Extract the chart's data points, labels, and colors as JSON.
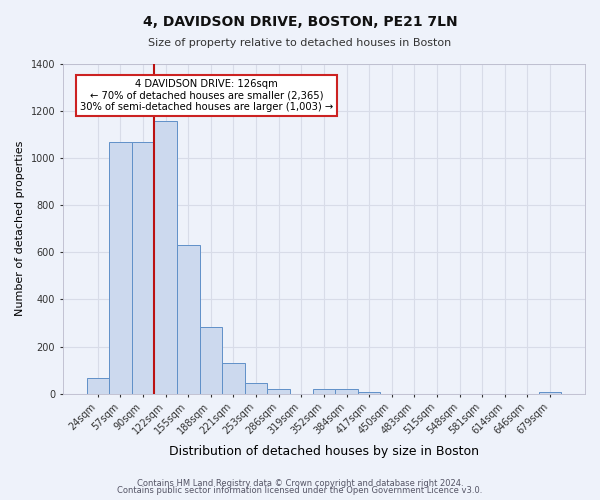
{
  "title": "4, DAVIDSON DRIVE, BOSTON, PE21 7LN",
  "subtitle": "Size of property relative to detached houses in Boston",
  "xlabel": "Distribution of detached houses by size in Boston",
  "ylabel": "Number of detached properties",
  "bar_labels": [
    "24sqm",
    "57sqm",
    "90sqm",
    "122sqm",
    "155sqm",
    "188sqm",
    "221sqm",
    "253sqm",
    "286sqm",
    "319sqm",
    "352sqm",
    "384sqm",
    "417sqm",
    "450sqm",
    "483sqm",
    "515sqm",
    "548sqm",
    "581sqm",
    "614sqm",
    "646sqm",
    "679sqm"
  ],
  "bar_values": [
    65,
    1070,
    1070,
    1160,
    630,
    285,
    130,
    47,
    20,
    0,
    20,
    20,
    5,
    0,
    0,
    0,
    0,
    0,
    0,
    0,
    5
  ],
  "bar_color": "#ccd9ee",
  "bar_edge_color": "#6090c8",
  "property_line_value": 2.5,
  "annotation_title": "4 DAVIDSON DRIVE: 126sqm",
  "annotation_line1": "← 70% of detached houses are smaller (2,365)",
  "annotation_line2": "30% of semi-detached houses are larger (1,003) →",
  "annotation_box_facecolor": "#ffffff",
  "annotation_box_edgecolor": "#cc2222",
  "ylim": [
    0,
    1400
  ],
  "yticks": [
    0,
    200,
    400,
    600,
    800,
    1000,
    1200,
    1400
  ],
  "footer1": "Contains HM Land Registry data © Crown copyright and database right 2024.",
  "footer2": "Contains public sector information licensed under the Open Government Licence v3.0.",
  "bg_color": "#eef2fa",
  "grid_color": "#d8dce8",
  "title_fontsize": 10,
  "subtitle_fontsize": 8,
  "xlabel_fontsize": 9,
  "ylabel_fontsize": 8,
  "tick_fontsize": 7,
  "footer_fontsize": 6
}
